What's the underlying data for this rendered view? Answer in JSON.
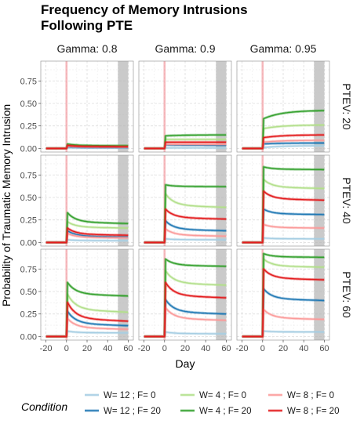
{
  "chart_data": {
    "type": "line",
    "title": [
      "Frequency of Memory Intrusions",
      "Following PTE"
    ],
    "xlabel": "Day",
    "ylabel": "Probability of Traumatic Memory Intrusion",
    "xlim": [
      -25,
      65
    ],
    "ylim": [
      -0.04,
      0.97
    ],
    "x_ticks": [
      -20,
      0,
      20,
      40,
      60
    ],
    "y_ticks": [
      0.0,
      0.25,
      0.5,
      0.75
    ],
    "y_tick_labels": [
      "0.00",
      "0.25",
      "0.50",
      "0.75"
    ],
    "grid": true,
    "legend_position": "bottom",
    "shaded_regions": [
      {
        "label": "event window",
        "x": [
          -1,
          1
        ],
        "color": "#f4a3a8"
      },
      {
        "label": "late window",
        "x": [
          50,
          60
        ],
        "color": "#b3b3b3"
      }
    ],
    "columns": [
      "Gamma: 0.8",
      "Gamma: 0.9",
      "Gamma: 0.95"
    ],
    "rows": [
      "PTEV: 20",
      "PTEV: 40",
      "PTEV: 60"
    ],
    "legend": {
      "title": "Condition",
      "entries": [
        {
          "label": "W= 12 ; F= 0",
          "color": "#a6cee3"
        },
        {
          "label": "W= 12 ; F= 20",
          "color": "#1f78b4"
        },
        {
          "label": "W= 4 ; F= 0",
          "color": "#b2df8a"
        },
        {
          "label": "W= 4 ; F= 20",
          "color": "#33a02c"
        },
        {
          "label": "W= 8 ; F= 0",
          "color": "#fb9a99"
        },
        {
          "label": "W= 8 ; F= 20",
          "color": "#e31a1c"
        }
      ]
    },
    "pre_event": {
      "x": [
        -20,
        0
      ],
      "y": 0.0
    },
    "panels": [
      {
        "row": 0,
        "col": 0,
        "series": [
          {
            "name": "W= 12 ; F= 0",
            "peak": 0.005,
            "end": 0.005
          },
          {
            "name": "W= 12 ; F= 20",
            "peak": 0.02,
            "end": 0.01
          },
          {
            "name": "W= 4 ; F= 0",
            "peak": 0.035,
            "end": 0.025
          },
          {
            "name": "W= 4 ; F= 20",
            "peak": 0.05,
            "end": 0.03
          },
          {
            "name": "W= 8 ; F= 0",
            "peak": 0.025,
            "end": 0.015
          },
          {
            "name": "W= 8 ; F= 20",
            "peak": 0.035,
            "end": 0.02
          }
        ]
      },
      {
        "row": 0,
        "col": 1,
        "series": [
          {
            "name": "W= 12 ; F= 0",
            "peak": 0.005,
            "end": 0.005
          },
          {
            "name": "W= 12 ; F= 20",
            "peak": 0.04,
            "end": 0.035
          },
          {
            "name": "W= 4 ; F= 0",
            "peak": 0.1,
            "end": 0.1
          },
          {
            "name": "W= 4 ; F= 20",
            "peak": 0.14,
            "end": 0.15
          },
          {
            "name": "W= 8 ; F= 0",
            "peak": 0.045,
            "end": 0.045
          },
          {
            "name": "W= 8 ; F= 20",
            "peak": 0.07,
            "end": 0.07
          }
        ]
      },
      {
        "row": 0,
        "col": 2,
        "series": [
          {
            "name": "W= 12 ; F= 0",
            "peak": 0.01,
            "end": 0.03
          },
          {
            "name": "W= 12 ; F= 20",
            "peak": 0.05,
            "end": 0.06
          },
          {
            "name": "W= 4 ; F= 0",
            "peak": 0.22,
            "end": 0.26
          },
          {
            "name": "W= 4 ; F= 20",
            "peak": 0.33,
            "end": 0.42
          },
          {
            "name": "W= 8 ; F= 0",
            "peak": 0.07,
            "end": 0.09
          },
          {
            "name": "W= 8 ; F= 20",
            "peak": 0.12,
            "end": 0.15
          }
        ]
      },
      {
        "row": 1,
        "col": 0,
        "series": [
          {
            "name": "W= 12 ; F= 0",
            "peak": 0.03,
            "end": 0.02
          },
          {
            "name": "W= 12 ; F= 20",
            "peak": 0.13,
            "end": 0.06
          },
          {
            "name": "W= 4 ; F= 0",
            "peak": 0.23,
            "end": 0.16
          },
          {
            "name": "W= 4 ; F= 20",
            "peak": 0.33,
            "end": 0.21
          },
          {
            "name": "W= 8 ; F= 0",
            "peak": 0.1,
            "end": 0.05
          },
          {
            "name": "W= 8 ; F= 20",
            "peak": 0.16,
            "end": 0.08
          }
        ]
      },
      {
        "row": 1,
        "col": 1,
        "series": [
          {
            "name": "W= 12 ; F= 0",
            "peak": 0.04,
            "end": 0.03
          },
          {
            "name": "W= 12 ; F= 20",
            "peak": 0.24,
            "end": 0.13
          },
          {
            "name": "W= 4 ; F= 0",
            "peak": 0.54,
            "end": 0.39
          },
          {
            "name": "W= 4 ; F= 20",
            "peak": 0.64,
            "end": 0.62
          },
          {
            "name": "W= 8 ; F= 0",
            "peak": 0.15,
            "end": 0.07
          },
          {
            "name": "W= 8 ; F= 20",
            "peak": 0.37,
            "end": 0.26
          }
        ]
      },
      {
        "row": 1,
        "col": 2,
        "series": [
          {
            "name": "W= 12 ; F= 0",
            "peak": 0.05,
            "end": 0.04
          },
          {
            "name": "W= 12 ; F= 20",
            "peak": 0.37,
            "end": 0.31
          },
          {
            "name": "W= 4 ; F= 0",
            "peak": 0.7,
            "end": 0.6
          },
          {
            "name": "W= 4 ; F= 20",
            "peak": 0.84,
            "end": 0.81
          },
          {
            "name": "W= 8 ; F= 0",
            "peak": 0.2,
            "end": 0.16
          },
          {
            "name": "W= 8 ; F= 20",
            "peak": 0.57,
            "end": 0.47
          }
        ]
      },
      {
        "row": 2,
        "col": 0,
        "series": [
          {
            "name": "W= 12 ; F= 0",
            "peak": 0.06,
            "end": 0.04
          },
          {
            "name": "W= 12 ; F= 20",
            "peak": 0.28,
            "end": 0.12
          },
          {
            "name": "W= 4 ; F= 0",
            "peak": 0.47,
            "end": 0.27
          },
          {
            "name": "W= 4 ; F= 20",
            "peak": 0.6,
            "end": 0.45
          },
          {
            "name": "W= 8 ; F= 0",
            "peak": 0.2,
            "end": 0.08
          },
          {
            "name": "W= 8 ; F= 20",
            "peak": 0.38,
            "end": 0.17
          }
        ]
      },
      {
        "row": 2,
        "col": 1,
        "series": [
          {
            "name": "W= 12 ; F= 0",
            "peak": 0.05,
            "end": 0.03
          },
          {
            "name": "W= 12 ; F= 20",
            "peak": 0.41,
            "end": 0.25
          },
          {
            "name": "W= 4 ; F= 0",
            "peak": 0.73,
            "end": 0.57
          },
          {
            "name": "W= 4 ; F= 20",
            "peak": 0.86,
            "end": 0.78
          },
          {
            "name": "W= 8 ; F= 0",
            "peak": 0.32,
            "end": 0.18
          },
          {
            "name": "W= 8 ; F= 20",
            "peak": 0.6,
            "end": 0.43
          }
        ]
      },
      {
        "row": 2,
        "col": 2,
        "series": [
          {
            "name": "W= 12 ; F= 0",
            "peak": 0.06,
            "end": 0.05
          },
          {
            "name": "W= 12 ; F= 20",
            "peak": 0.53,
            "end": 0.4
          },
          {
            "name": "W= 4 ; F= 0",
            "peak": 0.86,
            "end": 0.77
          },
          {
            "name": "W= 4 ; F= 20",
            "peak": 0.92,
            "end": 0.88
          },
          {
            "name": "W= 8 ; F= 0",
            "peak": 0.3,
            "end": 0.19
          },
          {
            "name": "W= 8 ; F= 20",
            "peak": 0.75,
            "end": 0.63
          }
        ]
      }
    ]
  }
}
